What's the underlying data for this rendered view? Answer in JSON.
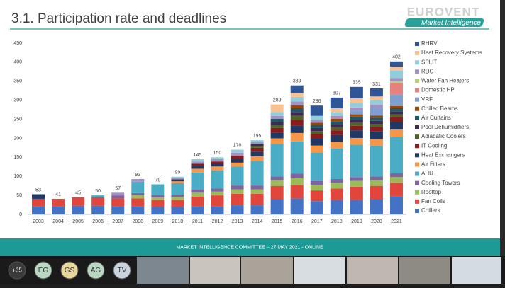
{
  "header": {
    "title": "3.1. Participation rate and deadlines",
    "logo": "EUROVENT",
    "logo_sub": "Market Intelligence"
  },
  "chart_data": {
    "type": "stacked-bar",
    "categories": [
      "2003",
      "2004",
      "2005",
      "2006",
      "2007",
      "2008",
      "2009",
      "2010",
      "2011",
      "2012",
      "2013",
      "2014",
      "2015",
      "2016",
      "2017",
      "2018",
      "2019",
      "2020",
      "2021"
    ],
    "totals": [
      53,
      41,
      45,
      50,
      57,
      93,
      79,
      99,
      145,
      150,
      170,
      195,
      289,
      339,
      286,
      307,
      335,
      331,
      402
    ],
    "ylim": [
      0,
      450
    ],
    "yticks": [
      0,
      50,
      100,
      150,
      200,
      250,
      300,
      350,
      400,
      450
    ],
    "grid": false,
    "series": [
      {
        "name": "Chillers",
        "color": "#4472c4",
        "values": [
          22,
          22,
          23,
          23,
          22,
          22,
          20,
          20,
          22,
          22,
          24,
          24,
          40,
          42,
          35,
          38,
          38,
          40,
          48
        ]
      },
      {
        "name": "Fan Coils",
        "color": "#e0463c",
        "values": [
          19,
          19,
          22,
          22,
          20,
          20,
          18,
          18,
          25,
          28,
          30,
          30,
          35,
          35,
          28,
          30,
          35,
          35,
          35
        ]
      },
      {
        "name": "Rooftop",
        "color": "#9bbb59",
        "values": [
          0,
          0,
          0,
          0,
          0,
          8,
          7,
          8,
          10,
          10,
          12,
          12,
          15,
          18,
          15,
          15,
          15,
          15,
          15
        ]
      },
      {
        "name": "Cooling Towers",
        "color": "#8064a2",
        "values": [
          0,
          0,
          0,
          0,
          8,
          6,
          6,
          6,
          8,
          8,
          10,
          10,
          10,
          12,
          10,
          10,
          10,
          10,
          10
        ]
      },
      {
        "name": "AHU",
        "color": "#4bacc6",
        "values": [
          0,
          0,
          0,
          5,
          0,
          30,
          28,
          30,
          45,
          48,
          50,
          65,
          85,
          85,
          75,
          80,
          85,
          80,
          95
        ]
      },
      {
        "name": "Air Filters",
        "color": "#f79646",
        "values": [
          0,
          0,
          0,
          0,
          0,
          0,
          0,
          5,
          10,
          10,
          10,
          12,
          15,
          22,
          18,
          18,
          18,
          18,
          20
        ]
      },
      {
        "name": "Heat Exchangers",
        "color": "#1f3864",
        "values": [
          12,
          0,
          0,
          0,
          0,
          0,
          0,
          5,
          8,
          8,
          10,
          12,
          15,
          20,
          18,
          18,
          20,
          20,
          20
        ]
      },
      {
        "name": "IT Cooling",
        "color": "#8b1a1a",
        "values": [
          0,
          0,
          0,
          0,
          0,
          0,
          0,
          0,
          5,
          5,
          8,
          10,
          12,
          15,
          12,
          12,
          12,
          12,
          12
        ]
      },
      {
        "name": "Adiabatic Coolers",
        "color": "#4f6228",
        "values": [
          0,
          0,
          0,
          0,
          0,
          0,
          0,
          0,
          0,
          0,
          0,
          5,
          8,
          10,
          8,
          8,
          8,
          8,
          8
        ]
      },
      {
        "name": "Pool Dehumidifiers",
        "color": "#3f2a56",
        "values": [
          0,
          0,
          0,
          0,
          0,
          0,
          0,
          0,
          0,
          0,
          0,
          5,
          8,
          10,
          8,
          8,
          8,
          8,
          8
        ]
      },
      {
        "name": "Air Curtains",
        "color": "#215868",
        "values": [
          0,
          0,
          0,
          0,
          0,
          0,
          0,
          0,
          0,
          0,
          0,
          0,
          8,
          10,
          8,
          8,
          8,
          8,
          8
        ]
      },
      {
        "name": "Chilled Beams",
        "color": "#974806",
        "values": [
          0,
          0,
          0,
          0,
          0,
          0,
          0,
          0,
          0,
          0,
          0,
          0,
          0,
          8,
          6,
          6,
          6,
          6,
          6
        ]
      },
      {
        "name": "VRF",
        "color": "#7f9fd0",
        "values": [
          0,
          0,
          0,
          0,
          0,
          0,
          0,
          0,
          0,
          0,
          0,
          0,
          0,
          0,
          0,
          0,
          10,
          20,
          30
        ]
      },
      {
        "name": "Domestic HP",
        "color": "#e6817e",
        "values": [
          0,
          0,
          0,
          0,
          0,
          0,
          0,
          0,
          0,
          0,
          0,
          0,
          0,
          0,
          0,
          0,
          0,
          0,
          30
        ]
      },
      {
        "name": "Water Fan Heaters",
        "color": "#b8d07a",
        "values": [
          0,
          0,
          0,
          0,
          0,
          0,
          0,
          0,
          0,
          0,
          0,
          0,
          0,
          0,
          0,
          0,
          0,
          0,
          5
        ]
      },
      {
        "name": "RDC",
        "color": "#a491c4",
        "values": [
          0,
          0,
          0,
          0,
          7,
          7,
          0,
          4,
          6,
          6,
          8,
          5,
          8,
          10,
          8,
          8,
          8,
          8,
          8
        ]
      },
      {
        "name": "SPLIT",
        "color": "#92cddc",
        "values": [
          0,
          0,
          0,
          0,
          0,
          0,
          0,
          3,
          6,
          5,
          8,
          5,
          10,
          12,
          10,
          10,
          12,
          12,
          20
        ]
      },
      {
        "name": "Heat Recovery Systems",
        "color": "#fac090",
        "values": [
          0,
          0,
          0,
          0,
          0,
          0,
          0,
          0,
          0,
          0,
          0,
          0,
          20,
          10,
          0,
          10,
          12,
          10,
          10
        ]
      },
      {
        "name": "RHRV",
        "color": "#2e5597",
        "values": [
          0,
          0,
          0,
          0,
          0,
          0,
          0,
          0,
          0,
          0,
          0,
          0,
          0,
          20,
          27,
          28,
          30,
          21,
          14
        ]
      }
    ]
  },
  "footer": {
    "text": "MARKET INTELLIGENCE COMMITTEE – 27 MAY 2021 - ONLINE"
  },
  "participants": [
    "+35",
    "EG",
    "GS",
    "AG",
    "TV"
  ]
}
